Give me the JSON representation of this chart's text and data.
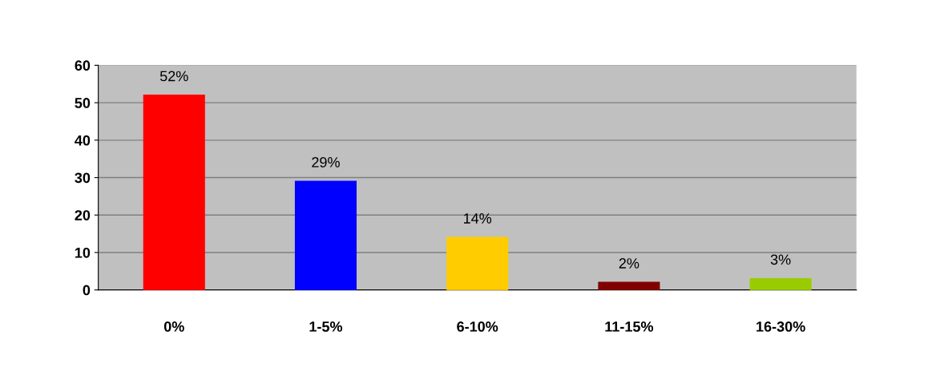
{
  "chart_data": {
    "type": "bar",
    "categories": [
      "0%",
      "1-5%",
      "6-10%",
      "11-15%",
      "16-30%"
    ],
    "values": [
      52,
      29,
      14,
      2,
      3
    ],
    "colors": [
      "#ff0000",
      "#0000ff",
      "#ffcc00",
      "#800000",
      "#99cc00"
    ],
    "value_labels": [
      "52%",
      "29%",
      "14%",
      "2%",
      "3%"
    ],
    "ylim": [
      0,
      60
    ],
    "yticks": [
      0,
      10,
      20,
      30,
      40,
      50,
      60
    ],
    "grid": "y",
    "legend": false
  }
}
